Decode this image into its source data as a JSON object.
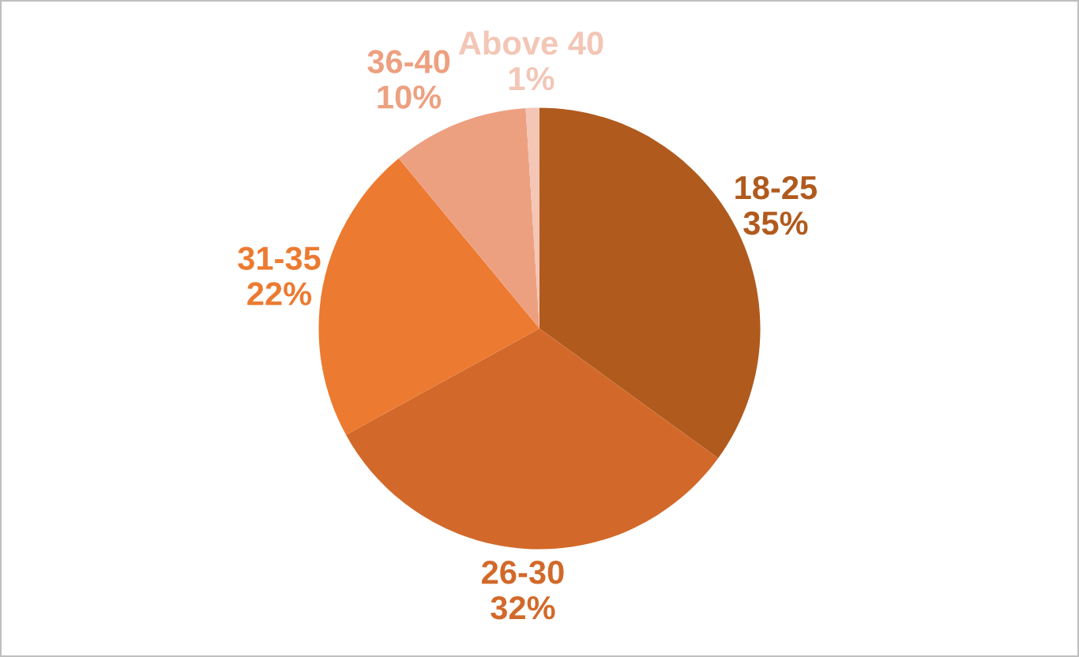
{
  "chart_data": {
    "type": "pie",
    "categories": [
      "18-25",
      "26-30",
      "31-35",
      "36-40",
      "Above 40"
    ],
    "values": [
      35,
      32,
      22,
      10,
      1
    ],
    "colors": [
      "#b05a1e",
      "#d2692a",
      "#ec7a30",
      "#eda080",
      "#f3c6b6"
    ],
    "value_labels": [
      "35%",
      "32%",
      "22%",
      "10%",
      "1%"
    ]
  }
}
